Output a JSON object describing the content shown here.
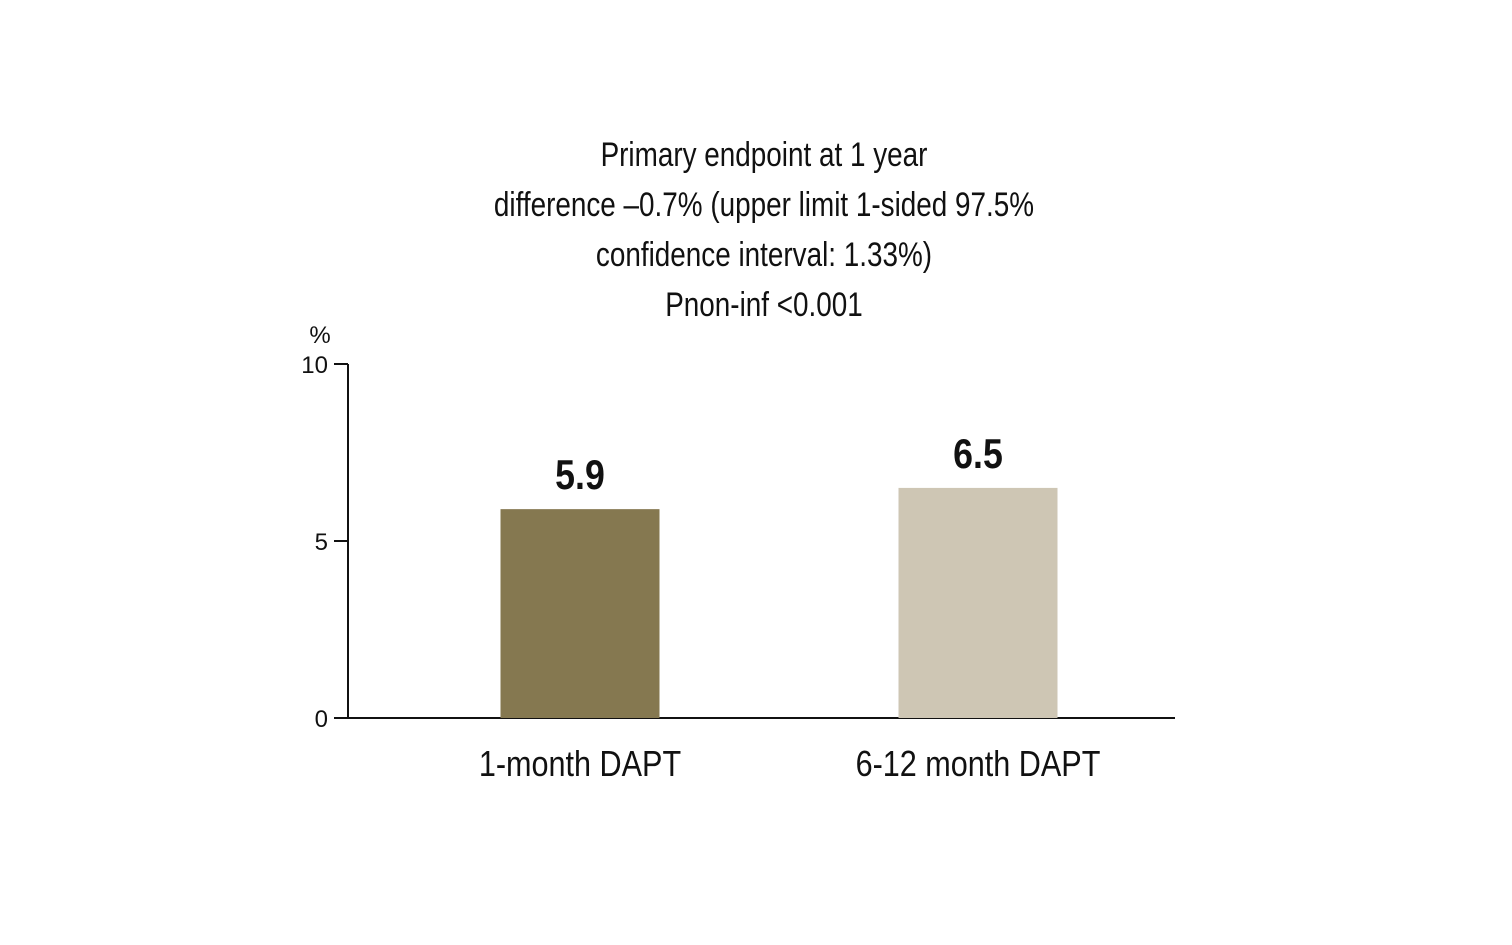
{
  "chart_data": {
    "type": "bar",
    "title_lines": [
      "Primary endpoint at 1 year",
      "difference –0.7% (upper limit 1-sided 97.5%",
      "confidence interval: 1.33%)",
      "Pnon-inf <0.001"
    ],
    "ylabel": "%",
    "ylim": [
      0,
      10
    ],
    "yticks": [
      0,
      5,
      10
    ],
    "categories": [
      "1-month DAPT",
      "6-12 month DAPT"
    ],
    "values": [
      5.9,
      6.5
    ],
    "value_labels": [
      "5.9",
      "6.5"
    ],
    "colors": [
      "#857850",
      "#cec6b4"
    ],
    "grid": false,
    "legend": "none"
  }
}
